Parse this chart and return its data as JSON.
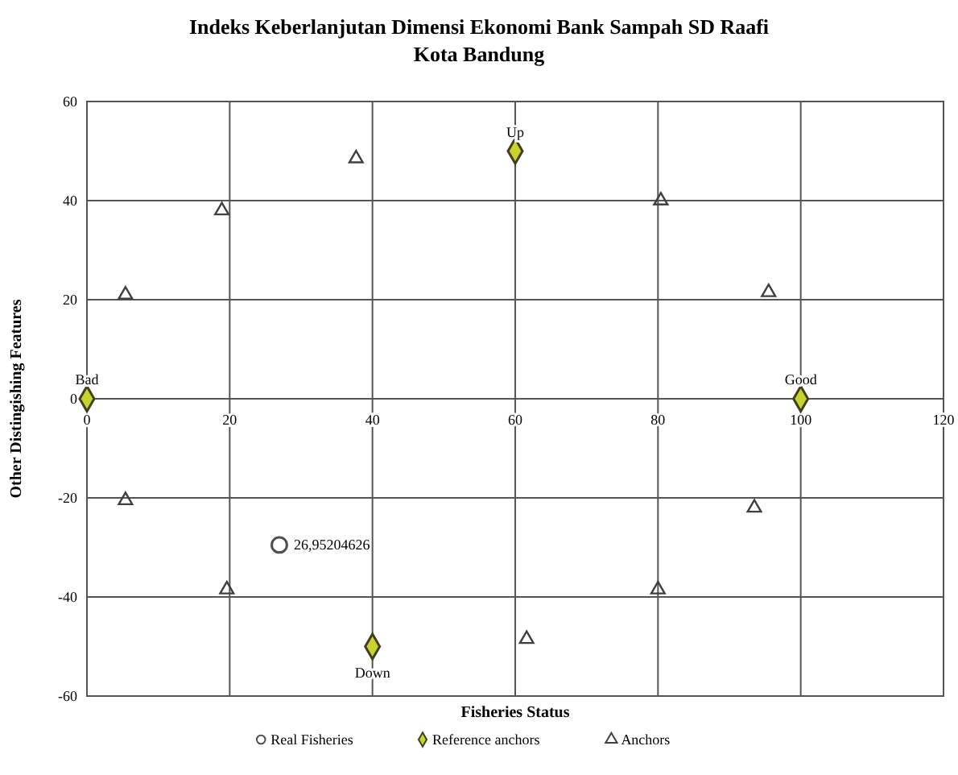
{
  "chart_data": {
    "type": "scatter",
    "title": "Indeks  Keberlanjutan Dimensi Ekonomi  Bank Sampah SD Raafi",
    "subtitle": "Kota Bandung",
    "xlabel": "Fisheries Status",
    "ylabel": "Other Distingishing  Features",
    "xlim": [
      0,
      120
    ],
    "ylim": [
      -60,
      60
    ],
    "xticks": [
      0,
      20,
      40,
      60,
      80,
      100,
      120
    ],
    "yticks": [
      -60,
      -40,
      -20,
      0,
      20,
      40,
      60
    ],
    "grid": true,
    "legend": "bottom",
    "series": [
      {
        "name": "Real Fisheries",
        "color": "#505050",
        "marker": "circle",
        "x": [
          26.95
        ],
        "values": [
          -29.5
        ]
      },
      {
        "name": "Reference anchors",
        "color": "#c8d42c",
        "marker": "diamond",
        "x": [
          100,
          0,
          60,
          40
        ],
        "values": [
          0,
          0,
          50,
          -50
        ]
      },
      {
        "name": "Anchors",
        "color": "#404040",
        "marker": "triangle",
        "x": [
          5.4,
          18.9,
          37.7,
          80.4,
          95.5,
          5.4,
          19.6,
          61.6,
          80,
          93.5
        ],
        "values": [
          21,
          38,
          48.5,
          40,
          21.5,
          -20.5,
          -38.5,
          -48.5,
          -38.5,
          -22
        ]
      }
    ],
    "annotations": [
      {
        "text": "26,95204626",
        "x": 26.95,
        "y": -29.5
      },
      {
        "text": "Good",
        "x": 100,
        "y": 0
      },
      {
        "text": "Bad",
        "x": 0,
        "y": 0
      },
      {
        "text": "Up",
        "x": 60,
        "y": 50
      },
      {
        "text": "Down",
        "x": 40,
        "y": -50
      }
    ]
  }
}
